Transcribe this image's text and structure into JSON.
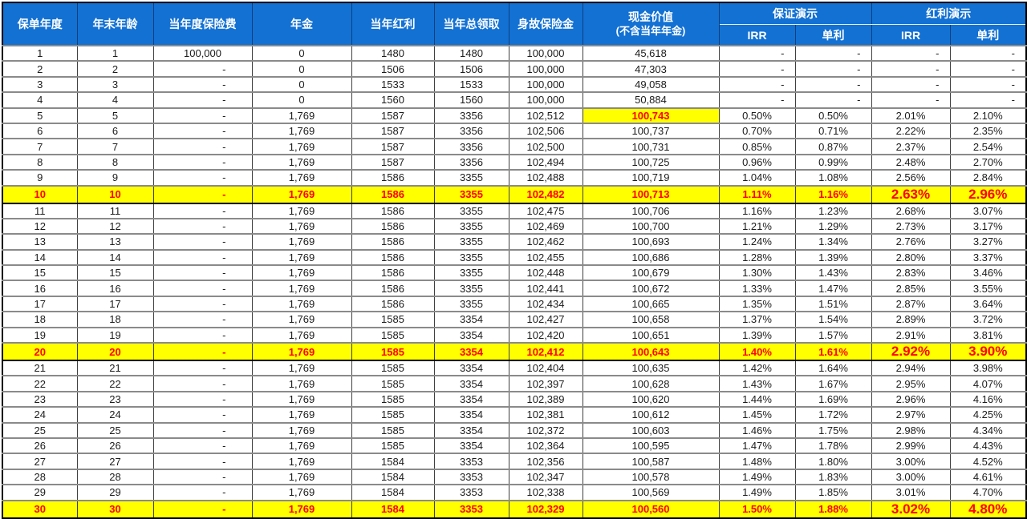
{
  "colors": {
    "header_blue": "#1371d3",
    "highlight_yellow": "#ffff00",
    "highlight_red": "#ff0000"
  },
  "table": {
    "column_keys": [
      "policy_year",
      "age_end_of_year",
      "annual_premium",
      "annuity",
      "annual_dividend",
      "annual_total_payout",
      "death_benefit",
      "cash_value",
      "guaranteed_irr",
      "guaranteed_simple",
      "dividend_irr",
      "dividend_simple"
    ],
    "headers": {
      "policy_year": "保单年度",
      "age_end_of_year": "年末年龄",
      "annual_premium": "当年度保险费",
      "annuity": "年金",
      "annual_dividend": "当年红利",
      "annual_total_payout": "当年总领取",
      "death_benefit": "身故保险金",
      "cash_value_line1": "现金价值",
      "cash_value_line2": "(不含当年年金)",
      "group_guaranteed": "保证演示",
      "group_dividend": "红利演示",
      "irr": "IRR",
      "simple_interest": "单利"
    },
    "highlight_row_indexes": [
      9,
      19,
      29
    ],
    "highlight_cell": {
      "row": 4,
      "col": 7
    },
    "rows": [
      [
        "1",
        "1",
        "100,000",
        "0",
        "1480",
        "1480",
        "100,000",
        "45,618",
        "-",
        "-",
        "-",
        "-"
      ],
      [
        "2",
        "2",
        "-",
        "0",
        "1506",
        "1506",
        "100,000",
        "47,303",
        "-",
        "-",
        "-",
        "-"
      ],
      [
        "3",
        "3",
        "-",
        "0",
        "1533",
        "1533",
        "100,000",
        "49,058",
        "-",
        "-",
        "-",
        "-"
      ],
      [
        "4",
        "4",
        "-",
        "0",
        "1560",
        "1560",
        "100,000",
        "50,884",
        "-",
        "-",
        "-",
        "-"
      ],
      [
        "5",
        "5",
        "-",
        "1,769",
        "1587",
        "3356",
        "102,512",
        "100,743",
        "0.50%",
        "0.50%",
        "2.01%",
        "2.10%"
      ],
      [
        "6",
        "6",
        "-",
        "1,769",
        "1587",
        "3356",
        "102,506",
        "100,737",
        "0.70%",
        "0.71%",
        "2.22%",
        "2.35%"
      ],
      [
        "7",
        "7",
        "-",
        "1,769",
        "1587",
        "3356",
        "102,500",
        "100,731",
        "0.85%",
        "0.87%",
        "2.37%",
        "2.54%"
      ],
      [
        "8",
        "8",
        "-",
        "1,769",
        "1587",
        "3356",
        "102,494",
        "100,725",
        "0.96%",
        "0.99%",
        "2.48%",
        "2.70%"
      ],
      [
        "9",
        "9",
        "-",
        "1,769",
        "1586",
        "3355",
        "102,488",
        "100,719",
        "1.04%",
        "1.08%",
        "2.56%",
        "2.84%"
      ],
      [
        "10",
        "10",
        "-",
        "1,769",
        "1586",
        "3355",
        "102,482",
        "100,713",
        "1.11%",
        "1.16%",
        "2.63%",
        "2.96%"
      ],
      [
        "11",
        "11",
        "-",
        "1,769",
        "1586",
        "3355",
        "102,475",
        "100,706",
        "1.16%",
        "1.23%",
        "2.68%",
        "3.07%"
      ],
      [
        "12",
        "12",
        "-",
        "1,769",
        "1586",
        "3355",
        "102,469",
        "100,700",
        "1.21%",
        "1.29%",
        "2.73%",
        "3.17%"
      ],
      [
        "13",
        "13",
        "-",
        "1,769",
        "1586",
        "3355",
        "102,462",
        "100,693",
        "1.24%",
        "1.34%",
        "2.76%",
        "3.27%"
      ],
      [
        "14",
        "14",
        "-",
        "1,769",
        "1586",
        "3355",
        "102,455",
        "100,686",
        "1.28%",
        "1.39%",
        "2.80%",
        "3.37%"
      ],
      [
        "15",
        "15",
        "-",
        "1,769",
        "1586",
        "3355",
        "102,448",
        "100,679",
        "1.30%",
        "1.43%",
        "2.83%",
        "3.46%"
      ],
      [
        "16",
        "16",
        "-",
        "1,769",
        "1586",
        "3355",
        "102,441",
        "100,672",
        "1.33%",
        "1.47%",
        "2.85%",
        "3.55%"
      ],
      [
        "17",
        "17",
        "-",
        "1,769",
        "1586",
        "3355",
        "102,434",
        "100,665",
        "1.35%",
        "1.51%",
        "2.87%",
        "3.64%"
      ],
      [
        "18",
        "18",
        "-",
        "1,769",
        "1585",
        "3354",
        "102,427",
        "100,658",
        "1.37%",
        "1.54%",
        "2.89%",
        "3.72%"
      ],
      [
        "19",
        "19",
        "-",
        "1,769",
        "1585",
        "3354",
        "102,420",
        "100,651",
        "1.39%",
        "1.57%",
        "2.91%",
        "3.81%"
      ],
      [
        "20",
        "20",
        "-",
        "1,769",
        "1585",
        "3354",
        "102,412",
        "100,643",
        "1.40%",
        "1.61%",
        "2.92%",
        "3.90%"
      ],
      [
        "21",
        "21",
        "-",
        "1,769",
        "1585",
        "3354",
        "102,404",
        "100,635",
        "1.42%",
        "1.64%",
        "2.94%",
        "3.98%"
      ],
      [
        "22",
        "22",
        "-",
        "1,769",
        "1585",
        "3354",
        "102,397",
        "100,628",
        "1.43%",
        "1.67%",
        "2.95%",
        "4.07%"
      ],
      [
        "23",
        "23",
        "-",
        "1,769",
        "1585",
        "3354",
        "102,389",
        "100,620",
        "1.44%",
        "1.69%",
        "2.96%",
        "4.16%"
      ],
      [
        "24",
        "24",
        "-",
        "1,769",
        "1585",
        "3354",
        "102,381",
        "100,612",
        "1.45%",
        "1.72%",
        "2.97%",
        "4.25%"
      ],
      [
        "25",
        "25",
        "-",
        "1,769",
        "1585",
        "3354",
        "102,372",
        "100,603",
        "1.46%",
        "1.75%",
        "2.98%",
        "4.34%"
      ],
      [
        "26",
        "26",
        "-",
        "1,769",
        "1585",
        "3354",
        "102,364",
        "100,595",
        "1.47%",
        "1.78%",
        "2.99%",
        "4.43%"
      ],
      [
        "27",
        "27",
        "-",
        "1,769",
        "1584",
        "3353",
        "102,356",
        "100,587",
        "1.48%",
        "1.80%",
        "3.00%",
        "4.52%"
      ],
      [
        "28",
        "28",
        "-",
        "1,769",
        "1584",
        "3353",
        "102,347",
        "100,578",
        "1.49%",
        "1.83%",
        "3.00%",
        "4.61%"
      ],
      [
        "29",
        "29",
        "-",
        "1,769",
        "1584",
        "3353",
        "102,338",
        "100,569",
        "1.49%",
        "1.85%",
        "3.01%",
        "4.70%"
      ],
      [
        "30",
        "30",
        "-",
        "1,769",
        "1584",
        "3353",
        "102,329",
        "100,560",
        "1.50%",
        "1.88%",
        "3.02%",
        "4.80%"
      ]
    ]
  }
}
